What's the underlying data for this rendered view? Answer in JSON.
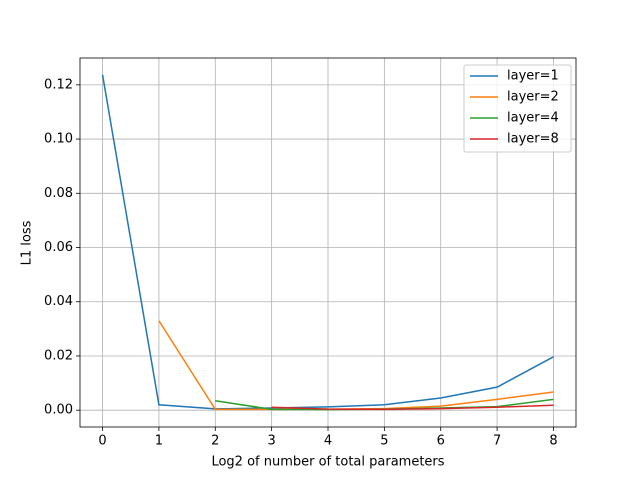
{
  "chart_data": {
    "type": "line",
    "x_label": "Log2 of number of total parameters",
    "y_label": "L1 loss",
    "x": [
      0,
      1,
      2,
      3,
      4,
      5,
      6,
      7,
      8
    ],
    "series": [
      {
        "name": "layer=1",
        "color": "#1f77b4",
        "values": [
          0.1237,
          0.002,
          0.0005,
          0.0008,
          0.0012,
          0.002,
          0.0045,
          0.0085,
          0.0197
        ]
      },
      {
        "name": "layer=2",
        "color": "#ff7f0e",
        "values": [
          null,
          0.033,
          0.0003,
          0.0003,
          0.0004,
          0.0006,
          0.0015,
          0.004,
          0.0067
        ]
      },
      {
        "name": "layer=4",
        "color": "#2ca02c",
        "values": [
          null,
          null,
          0.0035,
          0.0003,
          0.0002,
          0.0004,
          0.0008,
          0.0013,
          0.004
        ]
      },
      {
        "name": "layer=8",
        "color": "#d62728",
        "values": [
          null,
          null,
          null,
          0.0011,
          0.0004,
          0.0003,
          0.0006,
          0.0011,
          0.0018
        ]
      }
    ],
    "xlim": [
      -0.4,
      8.4
    ],
    "xticks": [
      0,
      1,
      2,
      3,
      4,
      5,
      6,
      7,
      8
    ],
    "ylim": [
      -0.0062,
      0.1299
    ],
    "yticks": [
      {
        "value": 0,
        "label": "0.00"
      },
      {
        "value": 0.02,
        "label": "0.02"
      },
      {
        "value": 0.04,
        "label": "0.04"
      },
      {
        "value": 0.06,
        "label": "0.06"
      },
      {
        "value": 0.08,
        "label": "0.08"
      },
      {
        "value": 0.1,
        "label": "0.10"
      },
      {
        "value": 0.12,
        "label": "0.12"
      }
    ],
    "grid": true,
    "legend_position": "upper-right"
  }
}
